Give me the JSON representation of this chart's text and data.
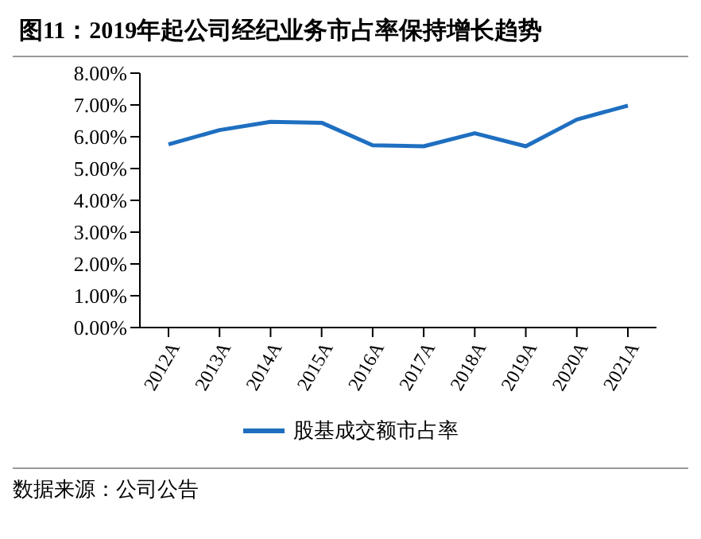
{
  "chart_data": {
    "type": "line",
    "title": "图11：2019年起公司经纪业务市占率保持增长趋势",
    "categories": [
      "2012A",
      "2013A",
      "2014A",
      "2015A",
      "2016A",
      "2017A",
      "2018A",
      "2019A",
      "2020A",
      "2021A"
    ],
    "series": [
      {
        "name": "股基成交额市占率",
        "color": "#1f6fc0",
        "values": [
          5.76,
          6.21,
          6.47,
          6.44,
          5.73,
          5.7,
          6.11,
          5.7,
          6.54,
          6.98
        ]
      }
    ],
    "ylim": [
      0,
      8
    ],
    "yticks": [
      {
        "value": 0,
        "label": "0.00%"
      },
      {
        "value": 1,
        "label": "1.00%"
      },
      {
        "value": 2,
        "label": "2.00%"
      },
      {
        "value": 3,
        "label": "3.00%"
      },
      {
        "value": 4,
        "label": "4.00%"
      },
      {
        "value": 5,
        "label": "5.00%"
      },
      {
        "value": 6,
        "label": "6.00%"
      },
      {
        "value": 7,
        "label": "7.00%"
      },
      {
        "value": 8,
        "label": "8.00%"
      }
    ],
    "grid": false,
    "legend": "bottom",
    "marker": "none",
    "line_style": "solid",
    "annotations": [
      "数据来源：公司公告"
    ]
  }
}
